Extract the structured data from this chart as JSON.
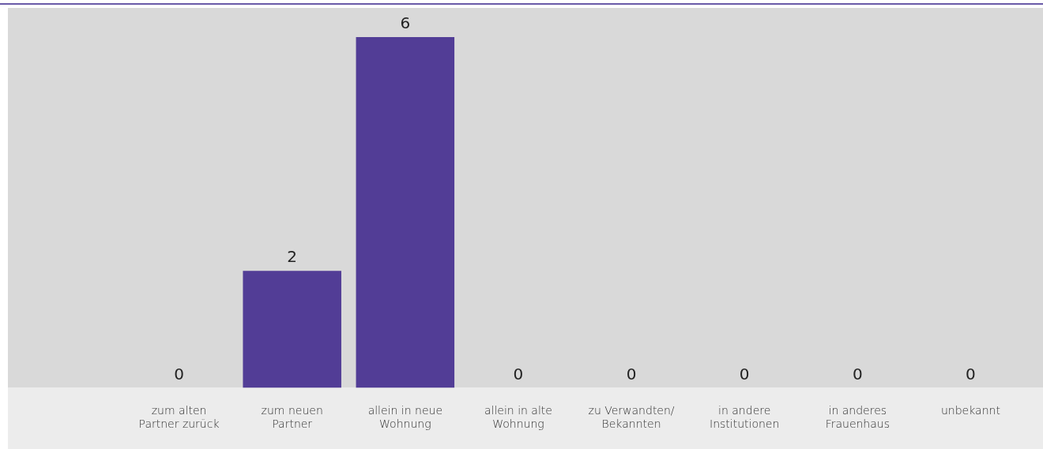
{
  "chart_data": {
    "type": "bar",
    "categories": [
      "zum alten Partner zurück",
      "zum neuen Partner",
      "allein in neue Wohnung",
      "allein in alte Wohnung",
      "zu Verwandten/ Bekannten",
      "in andere Institutionen",
      "in anderes Frauenhaus",
      "unbekannt"
    ],
    "values": [
      0,
      2,
      6,
      0,
      0,
      0,
      0,
      0
    ],
    "color": "#523d96",
    "ylim": [
      0,
      6.5
    ],
    "data_labels": true,
    "grid": false,
    "legend": false,
    "tick_labels": "x"
  }
}
